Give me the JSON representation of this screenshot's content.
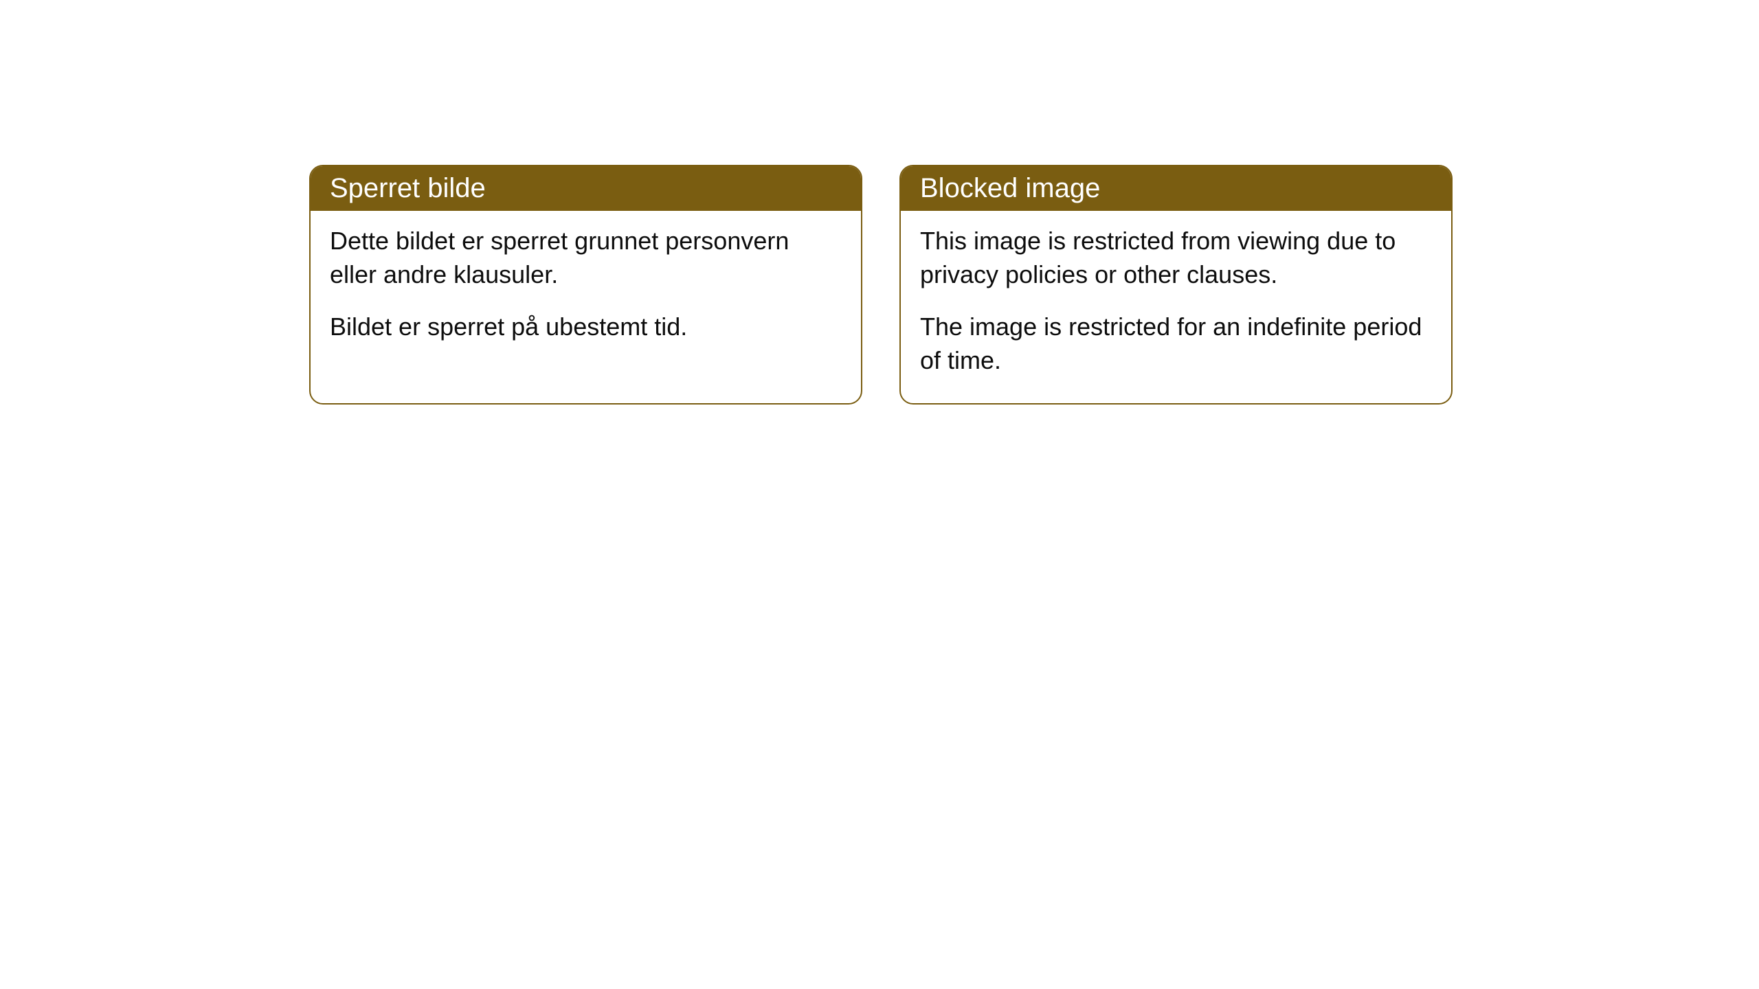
{
  "cards": [
    {
      "title": "Sperret bilde",
      "paragraph1": "Dette bildet er sperret grunnet personvern eller andre klausuler.",
      "paragraph2": "Bildet er sperret på ubestemt tid."
    },
    {
      "title": "Blocked image",
      "paragraph1": "This image is restricted from viewing due to privacy policies or other clauses.",
      "paragraph2": "The image is restricted for an indefinite period of time."
    }
  ],
  "style": {
    "header_background": "#7a5d11",
    "header_text_color": "#ffffff",
    "border_color": "#7a5d11",
    "body_background": "#ffffff",
    "body_text_color": "#0d0d0d",
    "border_radius": 20,
    "header_fontsize": 40,
    "body_fontsize": 36
  }
}
